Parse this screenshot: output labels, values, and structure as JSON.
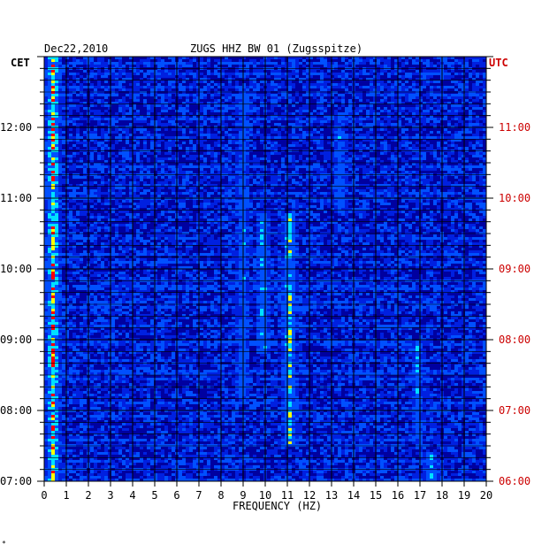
{
  "chart_data": {
    "type": "heatmap",
    "date": "Dec22,2010",
    "title": "ZUGS HHZ BW 01 (Zugsspitze)",
    "left_axis_label": "CET",
    "right_axis_label": "UTC",
    "xlabel": "FREQUENCY (HZ)",
    "xlim": [
      0,
      20
    ],
    "x_ticks": [
      "0",
      "1",
      "2",
      "3",
      "4",
      "5",
      "6",
      "7",
      "8",
      "9",
      "10",
      "11",
      "12",
      "13",
      "14",
      "15",
      "16",
      "17",
      "18",
      "19",
      "20"
    ],
    "left_time_ticks": [
      "07:00",
      "08:00",
      "09:00",
      "10:00",
      "11:00",
      "12:00"
    ],
    "right_time_ticks": [
      "06:00",
      "07:00",
      "08:00",
      "09:00",
      "10:00",
      "11:00"
    ],
    "time_range_cet_hours": [
      7.0,
      13.0
    ],
    "grid": true,
    "colors": {
      "background_low": "#0000a0",
      "mid": "#0050ff",
      "high": "#00e0ff",
      "peak": "#ffff00",
      "max": "#ff0000",
      "utc_label": "#cc0000"
    },
    "hotspots": [
      {
        "freq_hz": 0.4,
        "time_from": 7.0,
        "time_to": 13.0,
        "intensity": 0.95
      },
      {
        "freq_hz": 9.0,
        "time_from": 8.2,
        "time_to": 12.6,
        "intensity": 0.6
      },
      {
        "freq_hz": 9.9,
        "time_from": 8.8,
        "time_to": 10.8,
        "intensity": 0.7
      },
      {
        "freq_hz": 11.1,
        "time_from": 7.5,
        "time_to": 10.8,
        "intensity": 0.8
      },
      {
        "freq_hz": 13.4,
        "time_from": 10.8,
        "time_to": 12.2,
        "intensity": 0.6
      },
      {
        "freq_hz": 16.9,
        "time_from": 7.6,
        "time_to": 9.0,
        "intensity": 0.6
      },
      {
        "freq_hz": 17.5,
        "time_from": 7.0,
        "time_to": 7.4,
        "intensity": 0.7
      }
    ]
  },
  "footer_mark": "*"
}
